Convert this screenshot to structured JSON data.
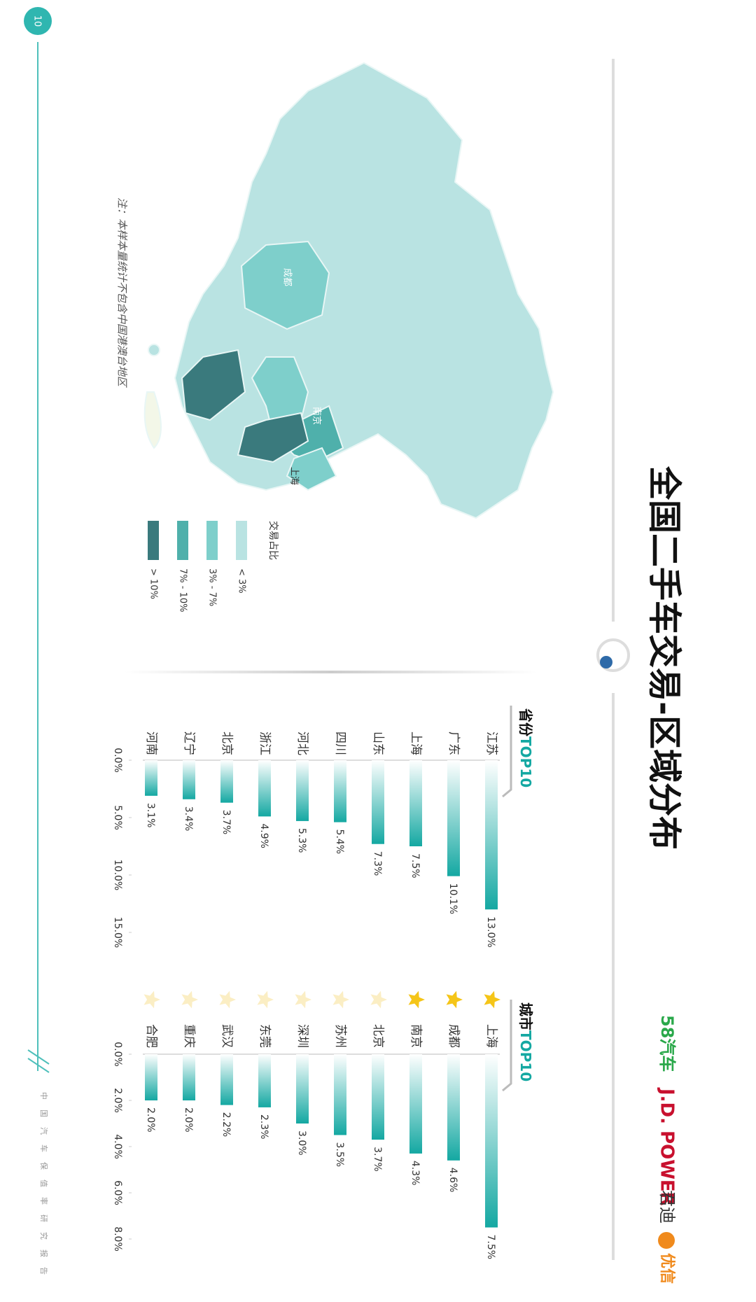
{
  "title": "全国二手车交易-区域分布",
  "logos": {
    "brand1": "58汽车",
    "brand2": "J.D. POWER",
    "brand3": "君迪",
    "brand4": "优信"
  },
  "page_number": "10",
  "footer": "中国汽车保值率研究报告",
  "note": "注：本样本量统计不包含中国港澳台地区",
  "map": {
    "labels": [
      "成都",
      "南京",
      "上海"
    ],
    "legend": {
      "title": "交易占比",
      "items": [
        {
          "label": "< 3%",
          "color": "#b9e3e2"
        },
        {
          "label": "3% - 7%",
          "color": "#7ecfcb"
        },
        {
          "label": "7% - 10%",
          "color": "#4fb0ab"
        },
        {
          "label": "> 10%",
          "color": "#3a7a7d"
        }
      ]
    }
  },
  "chart_data": [
    {
      "type": "bar",
      "orientation": "horizontal",
      "title": {
        "main": "省份",
        "highlight": "TOP10"
      },
      "categories": [
        "江苏",
        "广东",
        "上海",
        "山东",
        "四川",
        "河北",
        "浙江",
        "北京",
        "辽宁",
        "河南"
      ],
      "values": [
        13.0,
        10.1,
        7.5,
        7.3,
        5.4,
        5.3,
        4.9,
        3.7,
        3.4,
        3.1
      ],
      "value_labels": [
        "13.0%",
        "10.1%",
        "7.5%",
        "7.3%",
        "5.4%",
        "5.3%",
        "4.9%",
        "3.7%",
        "3.4%",
        "3.1%"
      ],
      "color": "#14a8a2",
      "xlim": [
        0,
        15
      ],
      "xticks": [
        {
          "value": 0,
          "label": "0.0%"
        },
        {
          "value": 5,
          "label": "5.0%"
        },
        {
          "value": 10,
          "label": "10.0%"
        },
        {
          "value": 15,
          "label": "15.0%"
        }
      ]
    },
    {
      "type": "bar",
      "orientation": "horizontal",
      "title": {
        "main": "城市",
        "highlight": "TOP10"
      },
      "categories": [
        "上海",
        "成都",
        "南京",
        "北京",
        "苏州",
        "深圳",
        "东莞",
        "武汉",
        "重庆",
        "合肥"
      ],
      "values": [
        7.5,
        4.6,
        4.3,
        3.7,
        3.5,
        3.0,
        2.3,
        2.2,
        2.0,
        2.0
      ],
      "value_labels": [
        "7.5%",
        "4.6%",
        "4.3%",
        "3.7%",
        "3.5%",
        "3.0%",
        "2.3%",
        "2.2%",
        "2.0%",
        "2.0%"
      ],
      "star_colors": [
        "#f5c518",
        "#f5c518",
        "#f5c518",
        "#fbeec4",
        "#fbeec4",
        "#fbeec4",
        "#fbeec4",
        "#fbeec4",
        "#fbeec4",
        "#fbeec4"
      ],
      "color": "#14a8a2",
      "xlim": [
        0,
        8
      ],
      "xticks": [
        {
          "value": 0,
          "label": "0.0%"
        },
        {
          "value": 2,
          "label": "2.0%"
        },
        {
          "value": 4,
          "label": "4.0%"
        },
        {
          "value": 6,
          "label": "6.0%"
        },
        {
          "value": 8,
          "label": "8.0%"
        }
      ]
    }
  ]
}
